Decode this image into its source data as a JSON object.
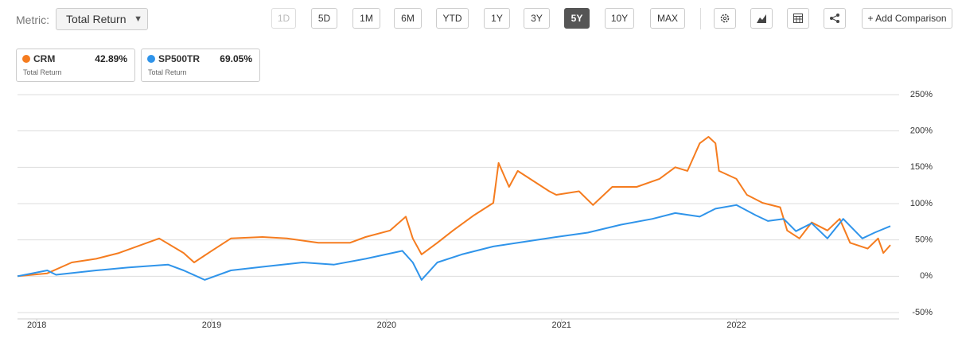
{
  "toolbar": {
    "metric_label": "Metric:",
    "metric_value": "Total Return",
    "ranges": [
      "1D",
      "5D",
      "1M",
      "6M",
      "YTD",
      "1Y",
      "3Y",
      "5Y",
      "10Y",
      "MAX"
    ],
    "active_range": "5Y",
    "disabled_range": "1D",
    "add_comparison": "+ Add Comparison"
  },
  "comparison_cards": [
    {
      "value": "42.89%",
      "metric": "Total Return"
    },
    {
      "value": "69.05%",
      "metric": "Total Return"
    }
  ],
  "chart_data": {
    "type": "line",
    "xlim": [
      2017.89,
      2022.93
    ],
    "xticks": [
      2018,
      2019,
      2020,
      2021,
      2022
    ],
    "ylim": [
      -50,
      250
    ],
    "yticks": [
      {
        "value": -50,
        "label": "-50%"
      },
      {
        "value": 0,
        "label": "0%"
      },
      {
        "value": 50,
        "label": "50%"
      },
      {
        "value": 100,
        "label": "100%"
      },
      {
        "value": 150,
        "label": "150%"
      },
      {
        "value": 200,
        "label": "200%"
      },
      {
        "value": 250,
        "label": "250%"
      }
    ],
    "grid": true,
    "series": [
      {
        "name": "CRM",
        "color": "#f57c1f",
        "x": [
          2017.89,
          2018.06,
          2018.2,
          2018.34,
          2018.47,
          2018.7,
          2018.84,
          2018.9,
          2019.0,
          2019.11,
          2019.29,
          2019.43,
          2019.61,
          2019.79,
          2019.88,
          2020.02,
          2020.11,
          2020.15,
          2020.2,
          2020.29,
          2020.38,
          2020.5,
          2020.61,
          2020.64,
          2020.7,
          2020.75,
          2020.93,
          2020.97,
          2021.1,
          2021.18,
          2021.29,
          2021.43,
          2021.56,
          2021.65,
          2021.72,
          2021.79,
          2021.84,
          2021.88,
          2021.9,
          2022.0,
          2022.06,
          2022.15,
          2022.25,
          2022.29,
          2022.36,
          2022.43,
          2022.52,
          2022.59,
          2022.65,
          2022.75,
          2022.81,
          2022.84,
          2022.88
        ],
        "values": [
          0,
          4,
          19,
          24,
          32,
          52,
          32,
          19,
          35,
          52,
          54,
          52,
          46,
          46,
          54,
          63,
          82,
          52,
          30,
          46,
          63,
          84,
          101,
          156,
          123,
          145,
          117,
          112,
          117,
          98,
          123,
          123,
          134,
          150,
          145,
          183,
          192,
          183,
          145,
          134,
          112,
          101,
          95,
          63,
          52,
          74,
          63,
          79,
          46,
          38,
          52,
          32,
          43
        ]
      },
      {
        "name": "SP500TR",
        "color": "#2f94ea",
        "x": [
          2017.89,
          2018.06,
          2018.11,
          2018.34,
          2018.52,
          2018.75,
          2018.84,
          2018.96,
          2019.11,
          2019.29,
          2019.52,
          2019.7,
          2019.88,
          2020.09,
          2020.15,
          2020.2,
          2020.29,
          2020.43,
          2020.61,
          2020.75,
          2020.97,
          2021.15,
          2021.34,
          2021.52,
          2021.65,
          2021.79,
          2021.88,
          2022.0,
          2022.11,
          2022.18,
          2022.27,
          2022.34,
          2022.43,
          2022.52,
          2022.61,
          2022.72,
          2022.79,
          2022.88
        ],
        "values": [
          0,
          8,
          2,
          8,
          12,
          16,
          8,
          -5,
          8,
          13,
          19,
          16,
          24,
          35,
          19,
          -5,
          19,
          30,
          41,
          46,
          54,
          60,
          71,
          79,
          87,
          82,
          93,
          98,
          84,
          76,
          79,
          62,
          73,
          52,
          79,
          52,
          60,
          69
        ]
      }
    ]
  }
}
